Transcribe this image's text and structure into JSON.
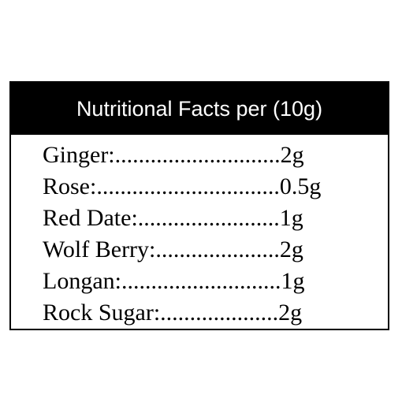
{
  "label": {
    "title": "Nutritional Facts per (10g)",
    "items": [
      {
        "name": "Ginger:",
        "leader": "............................",
        "amount": "2g"
      },
      {
        "name": "Rose:",
        "leader": "...............................",
        "amount": " 0.5g"
      },
      {
        "name": "Red Date:",
        "leader": "........................",
        "amount": "1g"
      },
      {
        "name": "Wolf Berry:",
        "leader": ".....................",
        "amount": "2g"
      },
      {
        "name": "Longan:",
        "leader": "...........................",
        "amount": "1g"
      },
      {
        "name": "Rock Sugar:",
        "leader": "....................",
        "amount": " 2g"
      }
    ]
  }
}
